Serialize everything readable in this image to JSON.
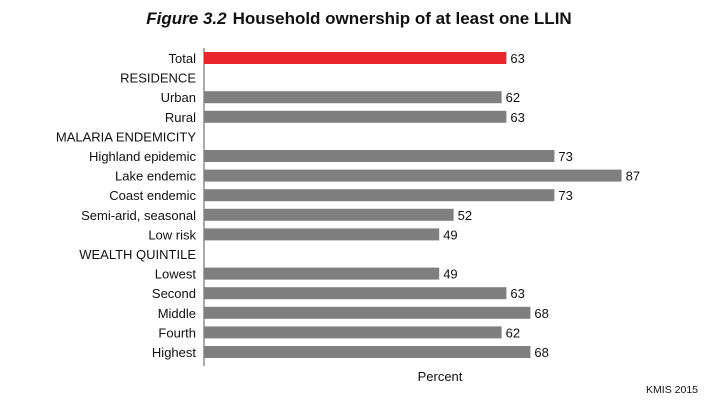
{
  "chart_data": {
    "type": "bar",
    "orientation": "horizontal",
    "title_prefix": "Figure 3.2",
    "title": "Household ownership of at least one LLIN",
    "xlabel": "Percent",
    "xlim": [
      0,
      90
    ],
    "grid": false,
    "categories": [
      {
        "label": "Total",
        "value": 63,
        "color": "#e8262b"
      },
      {
        "label": "RESIDENCE",
        "value": null
      },
      {
        "label": "Urban",
        "value": 62,
        "color": "#7f7f7f"
      },
      {
        "label": "Rural",
        "value": 63,
        "color": "#7f7f7f"
      },
      {
        "label": "MALARIA ENDEMICITY",
        "value": null
      },
      {
        "label": "Highland epidemic",
        "value": 73,
        "color": "#7f7f7f"
      },
      {
        "label": "Lake endemic",
        "value": 87,
        "color": "#7f7f7f"
      },
      {
        "label": "Coast endemic",
        "value": 73,
        "color": "#7f7f7f"
      },
      {
        "label": "Semi-arid, seasonal",
        "value": 52,
        "color": "#7f7f7f"
      },
      {
        "label": "Low risk",
        "value": 49,
        "color": "#7f7f7f"
      },
      {
        "label": "WEALTH QUINTILE",
        "value": null
      },
      {
        "label": "Lowest",
        "value": 49,
        "color": "#7f7f7f"
      },
      {
        "label": "Second",
        "value": 63,
        "color": "#7f7f7f"
      },
      {
        "label": "Middle",
        "value": 68,
        "color": "#7f7f7f"
      },
      {
        "label": "Fourth",
        "value": 62,
        "color": "#7f7f7f"
      },
      {
        "label": "Highest",
        "value": 68,
        "color": "#7f7f7f"
      }
    ],
    "source": "KMIS 2015"
  }
}
